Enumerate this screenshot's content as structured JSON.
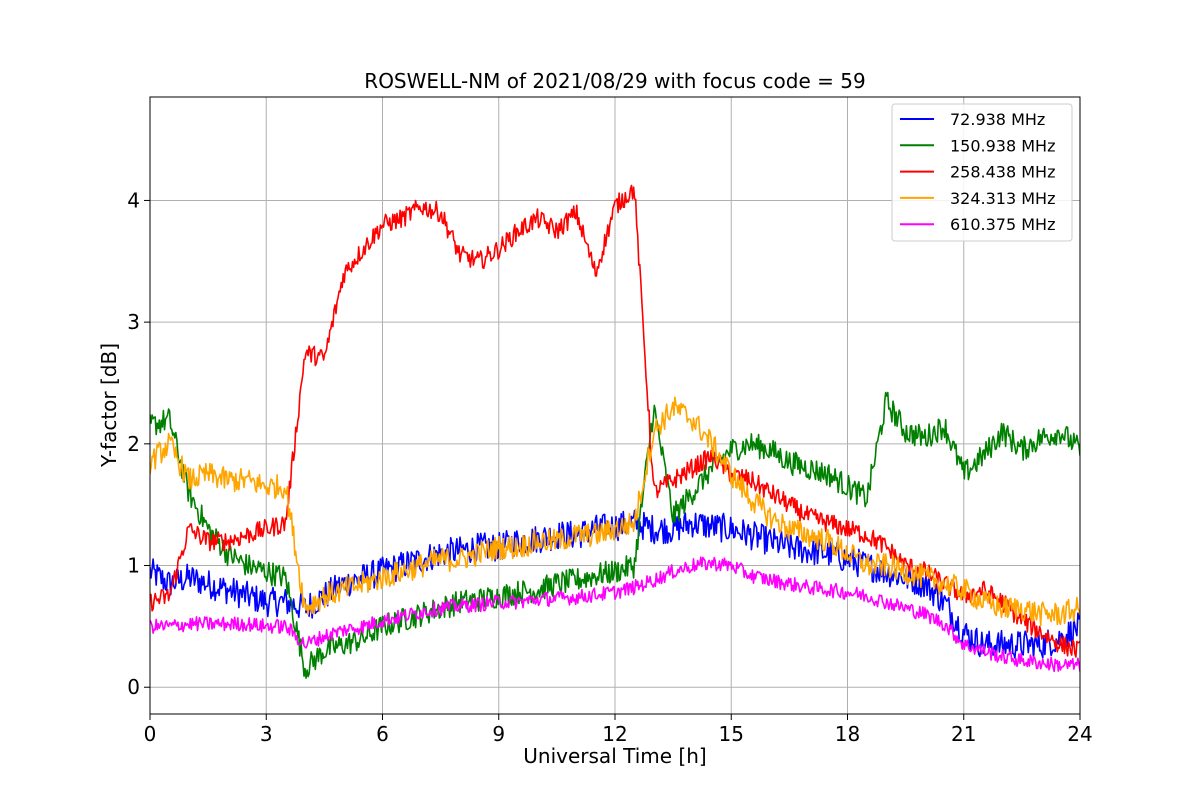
{
  "chart_data": {
    "type": "line",
    "title": "ROSWELL-NM of 2021/08/29 with focus code = 59",
    "xlabel": "Universal Time [h]",
    "ylabel": "Y-factor [dB]",
    "xlim": [
      0,
      24
    ],
    "ylim": [
      -0.22,
      4.85
    ],
    "xticks": [
      0,
      3,
      6,
      9,
      12,
      15,
      18,
      21,
      24
    ],
    "yticks": [
      0,
      1,
      2,
      3,
      4
    ],
    "grid": true,
    "legend_position": "top-right",
    "x": [
      0,
      0.5,
      1,
      1.5,
      2,
      2.5,
      3,
      3.5,
      4,
      4.5,
      5,
      5.5,
      6,
      6.5,
      7,
      7.5,
      8,
      8.5,
      9,
      9.5,
      10,
      10.5,
      11,
      11.5,
      12,
      12.5,
      13,
      13.5,
      14,
      14.5,
      15,
      15.5,
      16,
      16.5,
      17,
      17.5,
      18,
      18.5,
      19,
      19.5,
      20,
      20.5,
      21,
      21.5,
      22,
      22.5,
      23,
      23.5,
      24
    ],
    "series": [
      {
        "name": " 72.938 MHz",
        "color": "#0000ff",
        "spread": 0.12,
        "values": [
          0.95,
          0.85,
          0.9,
          0.85,
          0.8,
          0.75,
          0.7,
          0.7,
          0.65,
          0.75,
          0.85,
          0.9,
          0.95,
          1.0,
          1.05,
          1.1,
          1.12,
          1.15,
          1.15,
          1.2,
          1.22,
          1.25,
          1.25,
          1.3,
          1.32,
          1.35,
          1.3,
          1.3,
          1.35,
          1.32,
          1.3,
          1.25,
          1.2,
          1.15,
          1.12,
          1.1,
          1.05,
          1.0,
          0.95,
          0.9,
          0.85,
          0.7,
          0.45,
          0.35,
          0.35,
          0.35,
          0.35,
          0.4,
          0.5
        ]
      },
      {
        "name": "150.938 MHz",
        "color": "#008000",
        "spread": 0.1,
        "values": [
          2.15,
          2.2,
          1.6,
          1.3,
          1.1,
          1.0,
          0.95,
          0.9,
          0.15,
          0.3,
          0.35,
          0.4,
          0.5,
          0.55,
          0.6,
          0.65,
          0.7,
          0.72,
          0.75,
          0.78,
          0.8,
          0.85,
          0.88,
          0.92,
          0.95,
          1.0,
          2.3,
          1.4,
          1.6,
          1.8,
          1.95,
          2.0,
          1.95,
          1.85,
          1.8,
          1.75,
          1.65,
          1.55,
          2.35,
          2.1,
          2.05,
          2.15,
          1.75,
          1.9,
          2.1,
          1.95,
          2.05,
          2.1,
          1.95
        ]
      },
      {
        "name": "258.438 MHz",
        "color": "#ff0000",
        "spread": 0.08,
        "values": [
          0.7,
          0.75,
          1.3,
          1.2,
          1.2,
          1.25,
          1.3,
          1.35,
          2.75,
          2.7,
          3.4,
          3.6,
          3.8,
          3.85,
          3.95,
          3.9,
          3.55,
          3.5,
          3.6,
          3.75,
          3.85,
          3.75,
          3.9,
          3.4,
          3.95,
          4.1,
          1.6,
          1.7,
          1.8,
          1.9,
          1.75,
          1.7,
          1.6,
          1.5,
          1.4,
          1.35,
          1.3,
          1.25,
          1.15,
          1.0,
          0.95,
          0.85,
          0.75,
          0.8,
          0.7,
          0.55,
          0.45,
          0.35,
          0.3
        ]
      },
      {
        "name": "324.313 MHz",
        "color": "#ffa500",
        "spread": 0.1,
        "values": [
          1.85,
          2.0,
          1.7,
          1.75,
          1.7,
          1.7,
          1.65,
          1.65,
          0.65,
          0.75,
          0.8,
          0.85,
          0.9,
          0.95,
          1.0,
          1.05,
          1.05,
          1.1,
          1.15,
          1.15,
          1.2,
          1.2,
          1.25,
          1.25,
          1.3,
          1.35,
          2.1,
          2.3,
          2.2,
          2.0,
          1.75,
          1.55,
          1.4,
          1.3,
          1.25,
          1.2,
          1.1,
          1.0,
          1.0,
          0.95,
          0.9,
          0.85,
          0.8,
          0.7,
          0.65,
          0.65,
          0.6,
          0.6,
          0.65
        ]
      },
      {
        "name": "610.375 MHz",
        "color": "#ff00ff",
        "spread": 0.06,
        "values": [
          0.5,
          0.5,
          0.52,
          0.52,
          0.52,
          0.52,
          0.5,
          0.5,
          0.35,
          0.42,
          0.47,
          0.5,
          0.55,
          0.58,
          0.62,
          0.65,
          0.67,
          0.68,
          0.7,
          0.7,
          0.72,
          0.73,
          0.74,
          0.76,
          0.78,
          0.82,
          0.88,
          0.95,
          1.0,
          1.02,
          1.0,
          0.92,
          0.88,
          0.85,
          0.82,
          0.8,
          0.78,
          0.75,
          0.7,
          0.65,
          0.6,
          0.52,
          0.35,
          0.3,
          0.25,
          0.22,
          0.2,
          0.18,
          0.18
        ]
      }
    ]
  }
}
